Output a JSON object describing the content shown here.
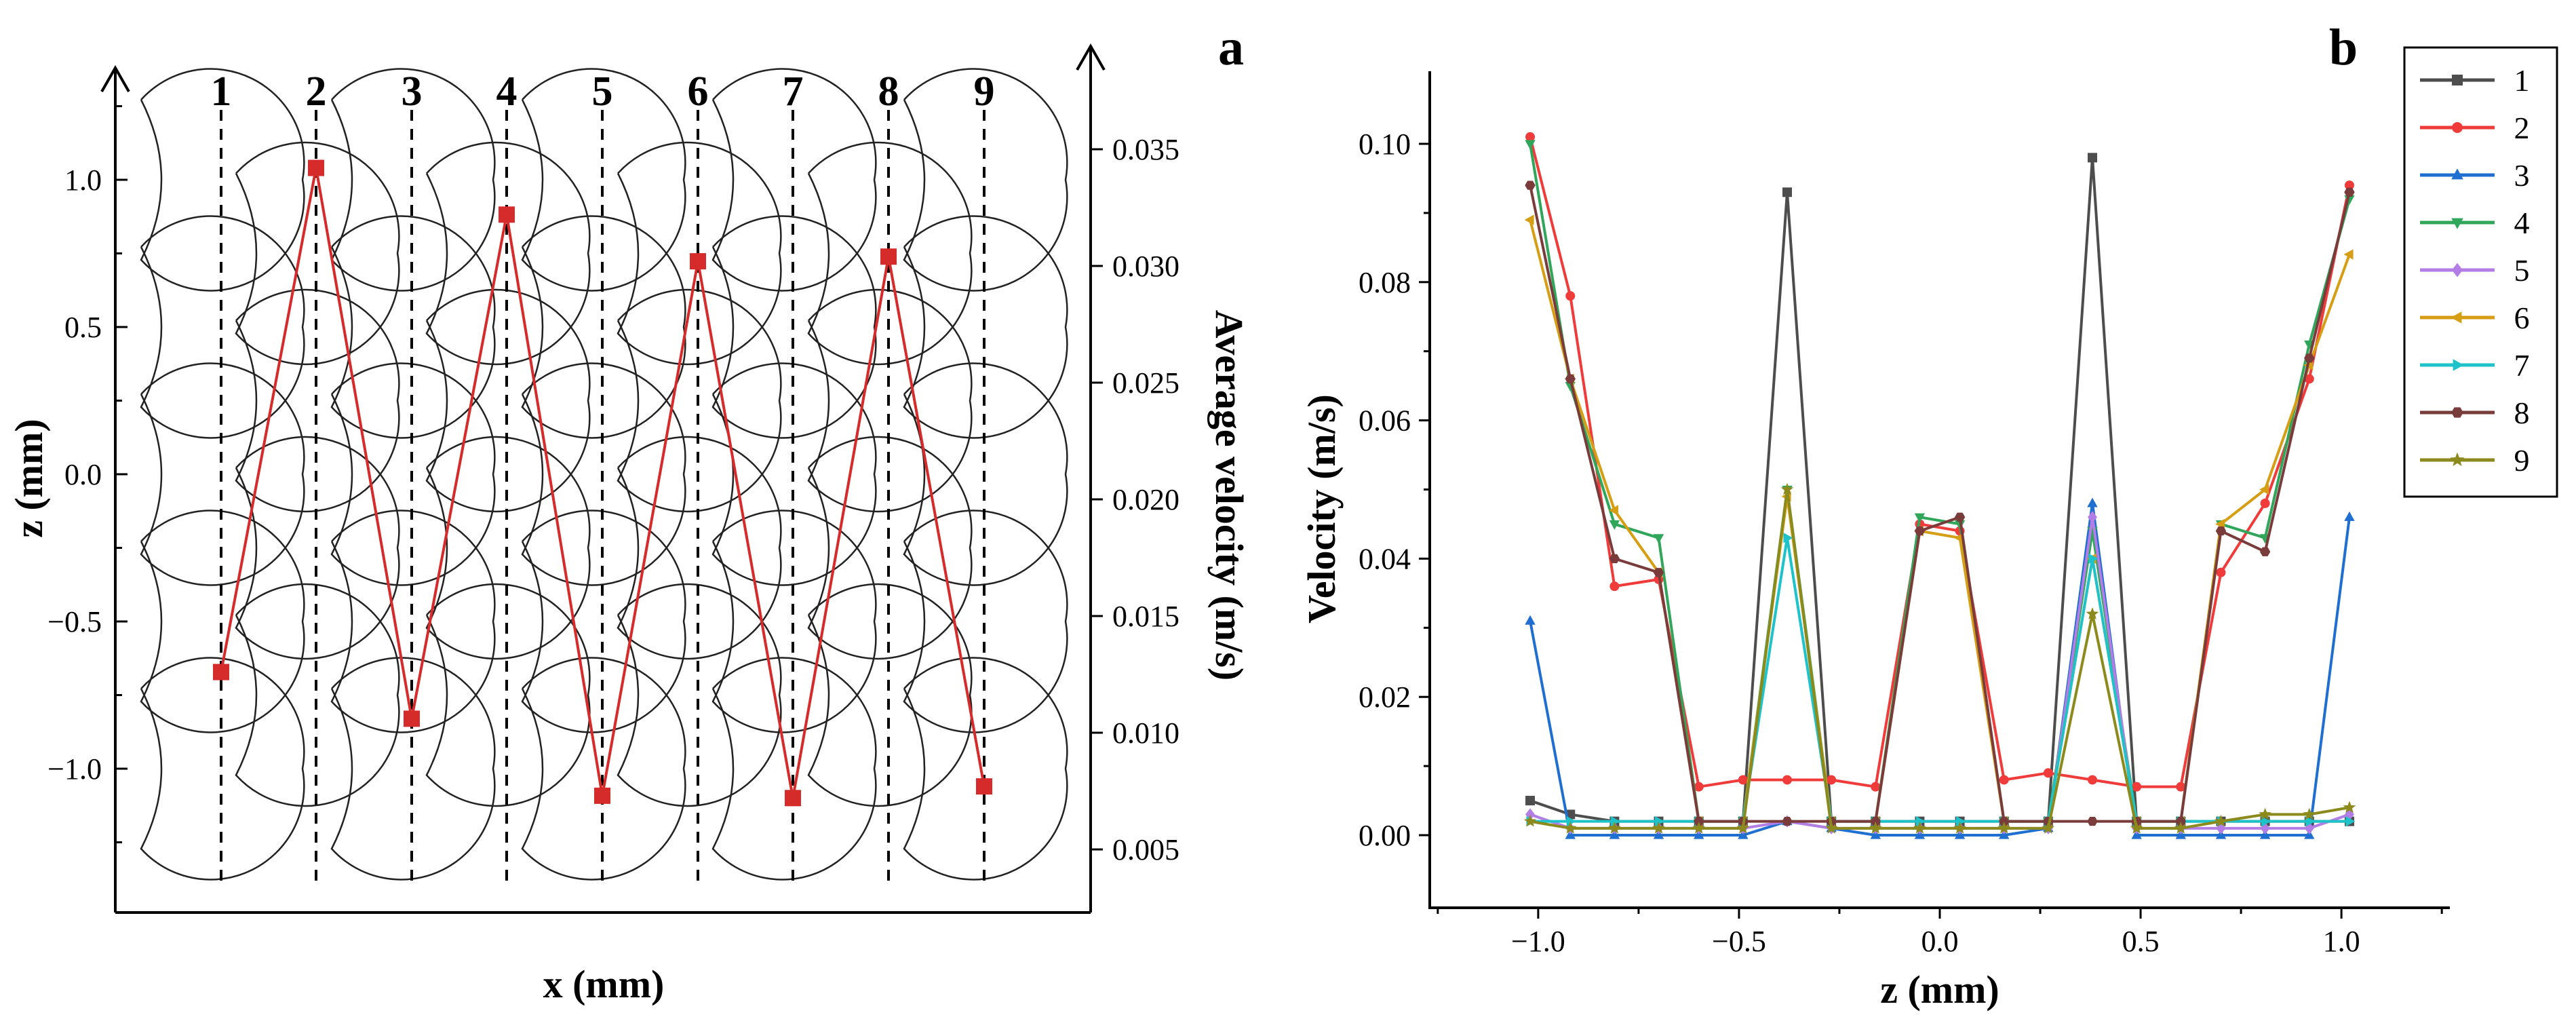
{
  "chart_data": [
    {
      "panel": "a",
      "type": "line",
      "xlabel": "x (mm)",
      "ylabel": "z (mm)",
      "y2label": "Average velocity (m/s)",
      "ylim": [
        -1.38,
        1.38
      ],
      "y2lim": [
        0.0033,
        0.0383
      ],
      "yticks": [
        "1.0",
        "0.5",
        "0.0",
        "−0.5",
        "−1.0"
      ],
      "yticks_values": [
        1.0,
        0.5,
        0.0,
        -0.5,
        -1.0
      ],
      "y2ticks": [
        "0.035",
        "0.030",
        "0.025",
        "0.020",
        "0.015",
        "0.010",
        "0.005"
      ],
      "y2ticks_values": [
        0.035,
        0.03,
        0.025,
        0.02,
        0.015,
        0.01,
        0.005
      ],
      "columns": [
        "1",
        "2",
        "3",
        "4",
        "5",
        "6",
        "7",
        "8",
        "9"
      ],
      "series": [
        {
          "name": "Average velocity",
          "color": "#d62b2b",
          "values": [
            0.0126,
            0.0342,
            0.0106,
            0.0322,
            0.0073,
            0.0302,
            0.0072,
            0.0304,
            0.0077
          ]
        }
      ]
    },
    {
      "panel": "b",
      "type": "line",
      "xlabel": "z (mm)",
      "ylabel": "Velocity (m/s)",
      "xlim": [
        -1.27,
        1.27
      ],
      "ylim": [
        -0.0105,
        0.1105
      ],
      "xticks": [
        "−1.0",
        "−0.5",
        "0.0",
        "0.5",
        "1.0"
      ],
      "xticks_values": [
        -1.0,
        -0.5,
        0.0,
        0.5,
        1.0
      ],
      "yticks": [
        "0.10",
        "0.08",
        "0.06",
        "0.04",
        "0.02",
        "0.00"
      ],
      "yticks_values": [
        0.1,
        0.08,
        0.06,
        0.04,
        0.02,
        0.0
      ],
      "x": [
        -1.02,
        -0.92,
        -0.81,
        -0.7,
        -0.6,
        -0.49,
        -0.38,
        -0.27,
        -0.16,
        -0.05,
        0.05,
        0.16,
        0.27,
        0.38,
        0.49,
        0.6,
        0.7,
        0.81,
        0.92,
        1.02
      ],
      "series": [
        {
          "name": "1",
          "color": "#4d4d4d",
          "marker": "square",
          "values": [
            0.005,
            0.003,
            0.002,
            0.002,
            0.002,
            0.002,
            0.093,
            0.002,
            0.002,
            0.002,
            0.002,
            0.002,
            0.002,
            0.098,
            0.002,
            0.002,
            0.002,
            0.002,
            0.002,
            0.002
          ]
        },
        {
          "name": "2",
          "color": "#f03b3b",
          "marker": "circle",
          "values": [
            0.101,
            0.078,
            0.036,
            0.037,
            0.007,
            0.008,
            0.008,
            0.008,
            0.007,
            0.045,
            0.044,
            0.008,
            0.009,
            0.008,
            0.007,
            0.007,
            0.038,
            0.048,
            0.066,
            0.094
          ]
        },
        {
          "name": "3",
          "color": "#1f6fd1",
          "marker": "triangle-up",
          "values": [
            0.031,
            0.0,
            0.0,
            0.0,
            0.0,
            0.0,
            0.002,
            0.001,
            0.0,
            0.0,
            0.0,
            0.0,
            0.001,
            0.048,
            0.0,
            0.0,
            0.0,
            0.0,
            0.0,
            0.046
          ]
        },
        {
          "name": "4",
          "color": "#2fa65a",
          "marker": "triangle-down",
          "values": [
            0.1,
            0.065,
            0.045,
            0.043,
            0.002,
            0.002,
            0.05,
            0.002,
            0.002,
            0.046,
            0.045,
            0.002,
            0.002,
            0.044,
            0.002,
            0.002,
            0.045,
            0.043,
            0.071,
            0.092
          ]
        },
        {
          "name": "5",
          "color": "#b27ee6",
          "marker": "diamond",
          "values": [
            0.003,
            0.001,
            0.001,
            0.001,
            0.001,
            0.001,
            0.002,
            0.001,
            0.001,
            0.001,
            0.001,
            0.001,
            0.001,
            0.046,
            0.001,
            0.001,
            0.001,
            0.001,
            0.001,
            0.003
          ]
        },
        {
          "name": "6",
          "color": "#d69e14",
          "marker": "triangle-left",
          "values": [
            0.089,
            0.066,
            0.047,
            0.038,
            0.002,
            0.002,
            0.049,
            0.002,
            0.002,
            0.044,
            0.043,
            0.002,
            0.002,
            0.04,
            0.002,
            0.002,
            0.045,
            0.05,
            0.068,
            0.084
          ]
        },
        {
          "name": "7",
          "color": "#1ec2c9",
          "marker": "triangle-right",
          "values": [
            0.002,
            0.002,
            0.002,
            0.002,
            0.002,
            0.002,
            0.043,
            0.002,
            0.002,
            0.002,
            0.002,
            0.002,
            0.002,
            0.04,
            0.002,
            0.002,
            0.002,
            0.002,
            0.002,
            0.002
          ]
        },
        {
          "name": "8",
          "color": "#7a3b3b",
          "marker": "hexagon",
          "values": [
            0.094,
            0.066,
            0.04,
            0.038,
            0.002,
            0.002,
            0.002,
            0.002,
            0.002,
            0.044,
            0.046,
            0.002,
            0.002,
            0.002,
            0.002,
            0.002,
            0.044,
            0.041,
            0.069,
            0.093
          ]
        },
        {
          "name": "9",
          "color": "#8c8a1c",
          "marker": "star",
          "values": [
            0.002,
            0.001,
            0.001,
            0.001,
            0.001,
            0.001,
            0.05,
            0.001,
            0.001,
            0.001,
            0.001,
            0.001,
            0.001,
            0.032,
            0.001,
            0.001,
            0.002,
            0.003,
            0.003,
            0.004
          ]
        }
      ]
    }
  ]
}
